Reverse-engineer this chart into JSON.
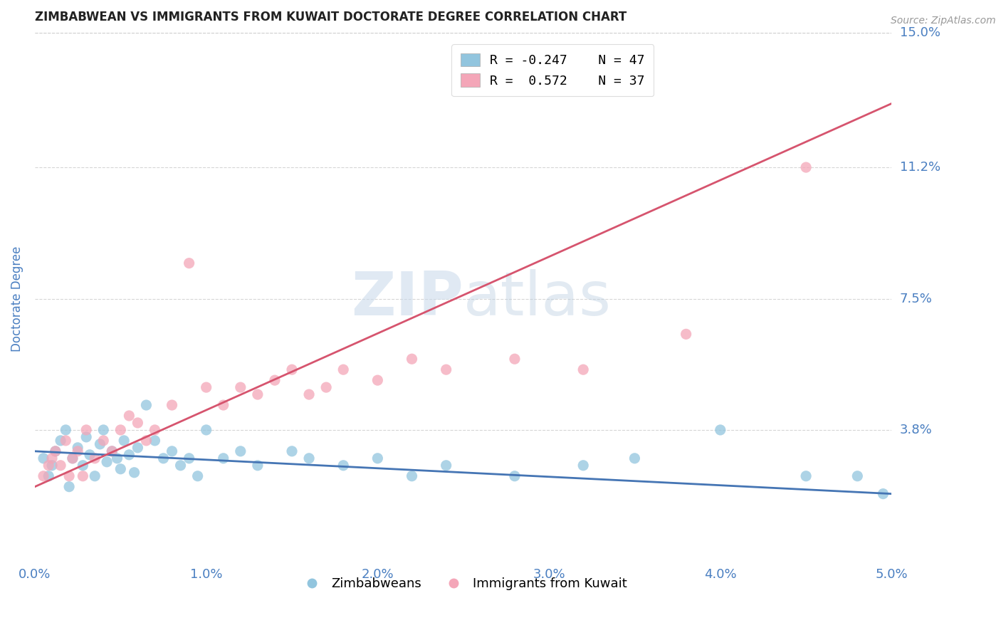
{
  "title": "ZIMBABWEAN VS IMMIGRANTS FROM KUWAIT DOCTORATE DEGREE CORRELATION CHART",
  "source": "Source: ZipAtlas.com",
  "ylabel": "Doctorate Degree",
  "xlim": [
    0.0,
    5.0
  ],
  "ylim": [
    0.0,
    15.0
  ],
  "watermark": "ZIPatlas",
  "legend_r1": "R = -0.247",
  "legend_n1": "N = 47",
  "legend_r2": "R =  0.572",
  "legend_n2": "N = 37",
  "blue_color": "#92c5de",
  "pink_color": "#f4a6b8",
  "blue_line_color": "#4575b4",
  "pink_line_color": "#d6546e",
  "title_color": "#222222",
  "tick_label_color": "#4a7fc1",
  "background_color": "#ffffff",
  "blue_dots_x": [
    0.05,
    0.08,
    0.1,
    0.12,
    0.15,
    0.18,
    0.2,
    0.22,
    0.25,
    0.28,
    0.3,
    0.32,
    0.35,
    0.38,
    0.4,
    0.42,
    0.45,
    0.48,
    0.5,
    0.52,
    0.55,
    0.58,
    0.6,
    0.65,
    0.7,
    0.75,
    0.8,
    0.85,
    0.9,
    0.95,
    1.0,
    1.1,
    1.2,
    1.3,
    1.5,
    1.6,
    1.8,
    2.0,
    2.2,
    2.4,
    2.8,
    3.2,
    3.5,
    4.0,
    4.5,
    4.8,
    4.95
  ],
  "blue_dots_y": [
    3.0,
    2.5,
    2.8,
    3.2,
    3.5,
    3.8,
    2.2,
    3.0,
    3.3,
    2.8,
    3.6,
    3.1,
    2.5,
    3.4,
    3.8,
    2.9,
    3.2,
    3.0,
    2.7,
    3.5,
    3.1,
    2.6,
    3.3,
    4.5,
    3.5,
    3.0,
    3.2,
    2.8,
    3.0,
    2.5,
    3.8,
    3.0,
    3.2,
    2.8,
    3.2,
    3.0,
    2.8,
    3.0,
    2.5,
    2.8,
    2.5,
    2.8,
    3.0,
    3.8,
    2.5,
    2.5,
    2.0
  ],
  "pink_dots_x": [
    0.05,
    0.08,
    0.1,
    0.12,
    0.15,
    0.18,
    0.2,
    0.22,
    0.25,
    0.28,
    0.3,
    0.35,
    0.4,
    0.45,
    0.5,
    0.55,
    0.6,
    0.65,
    0.7,
    0.8,
    0.9,
    1.0,
    1.1,
    1.2,
    1.3,
    1.4,
    1.5,
    1.6,
    1.7,
    1.8,
    2.0,
    2.2,
    2.4,
    2.8,
    3.2,
    3.8,
    4.5
  ],
  "pink_dots_y": [
    2.5,
    2.8,
    3.0,
    3.2,
    2.8,
    3.5,
    2.5,
    3.0,
    3.2,
    2.5,
    3.8,
    3.0,
    3.5,
    3.2,
    3.8,
    4.2,
    4.0,
    3.5,
    3.8,
    4.5,
    8.5,
    5.0,
    4.5,
    5.0,
    4.8,
    5.2,
    5.5,
    4.8,
    5.0,
    5.5,
    5.2,
    5.8,
    5.5,
    5.8,
    5.5,
    6.5,
    11.2
  ],
  "blue_line_x": [
    0.0,
    5.0
  ],
  "blue_line_y": [
    3.2,
    2.0
  ],
  "pink_line_x": [
    0.0,
    5.0
  ],
  "pink_line_y": [
    2.2,
    13.0
  ],
  "xtick_vals": [
    0.0,
    1.0,
    2.0,
    3.0,
    4.0,
    5.0
  ],
  "ytick_vals": [
    3.8,
    7.5,
    11.2,
    15.0
  ]
}
